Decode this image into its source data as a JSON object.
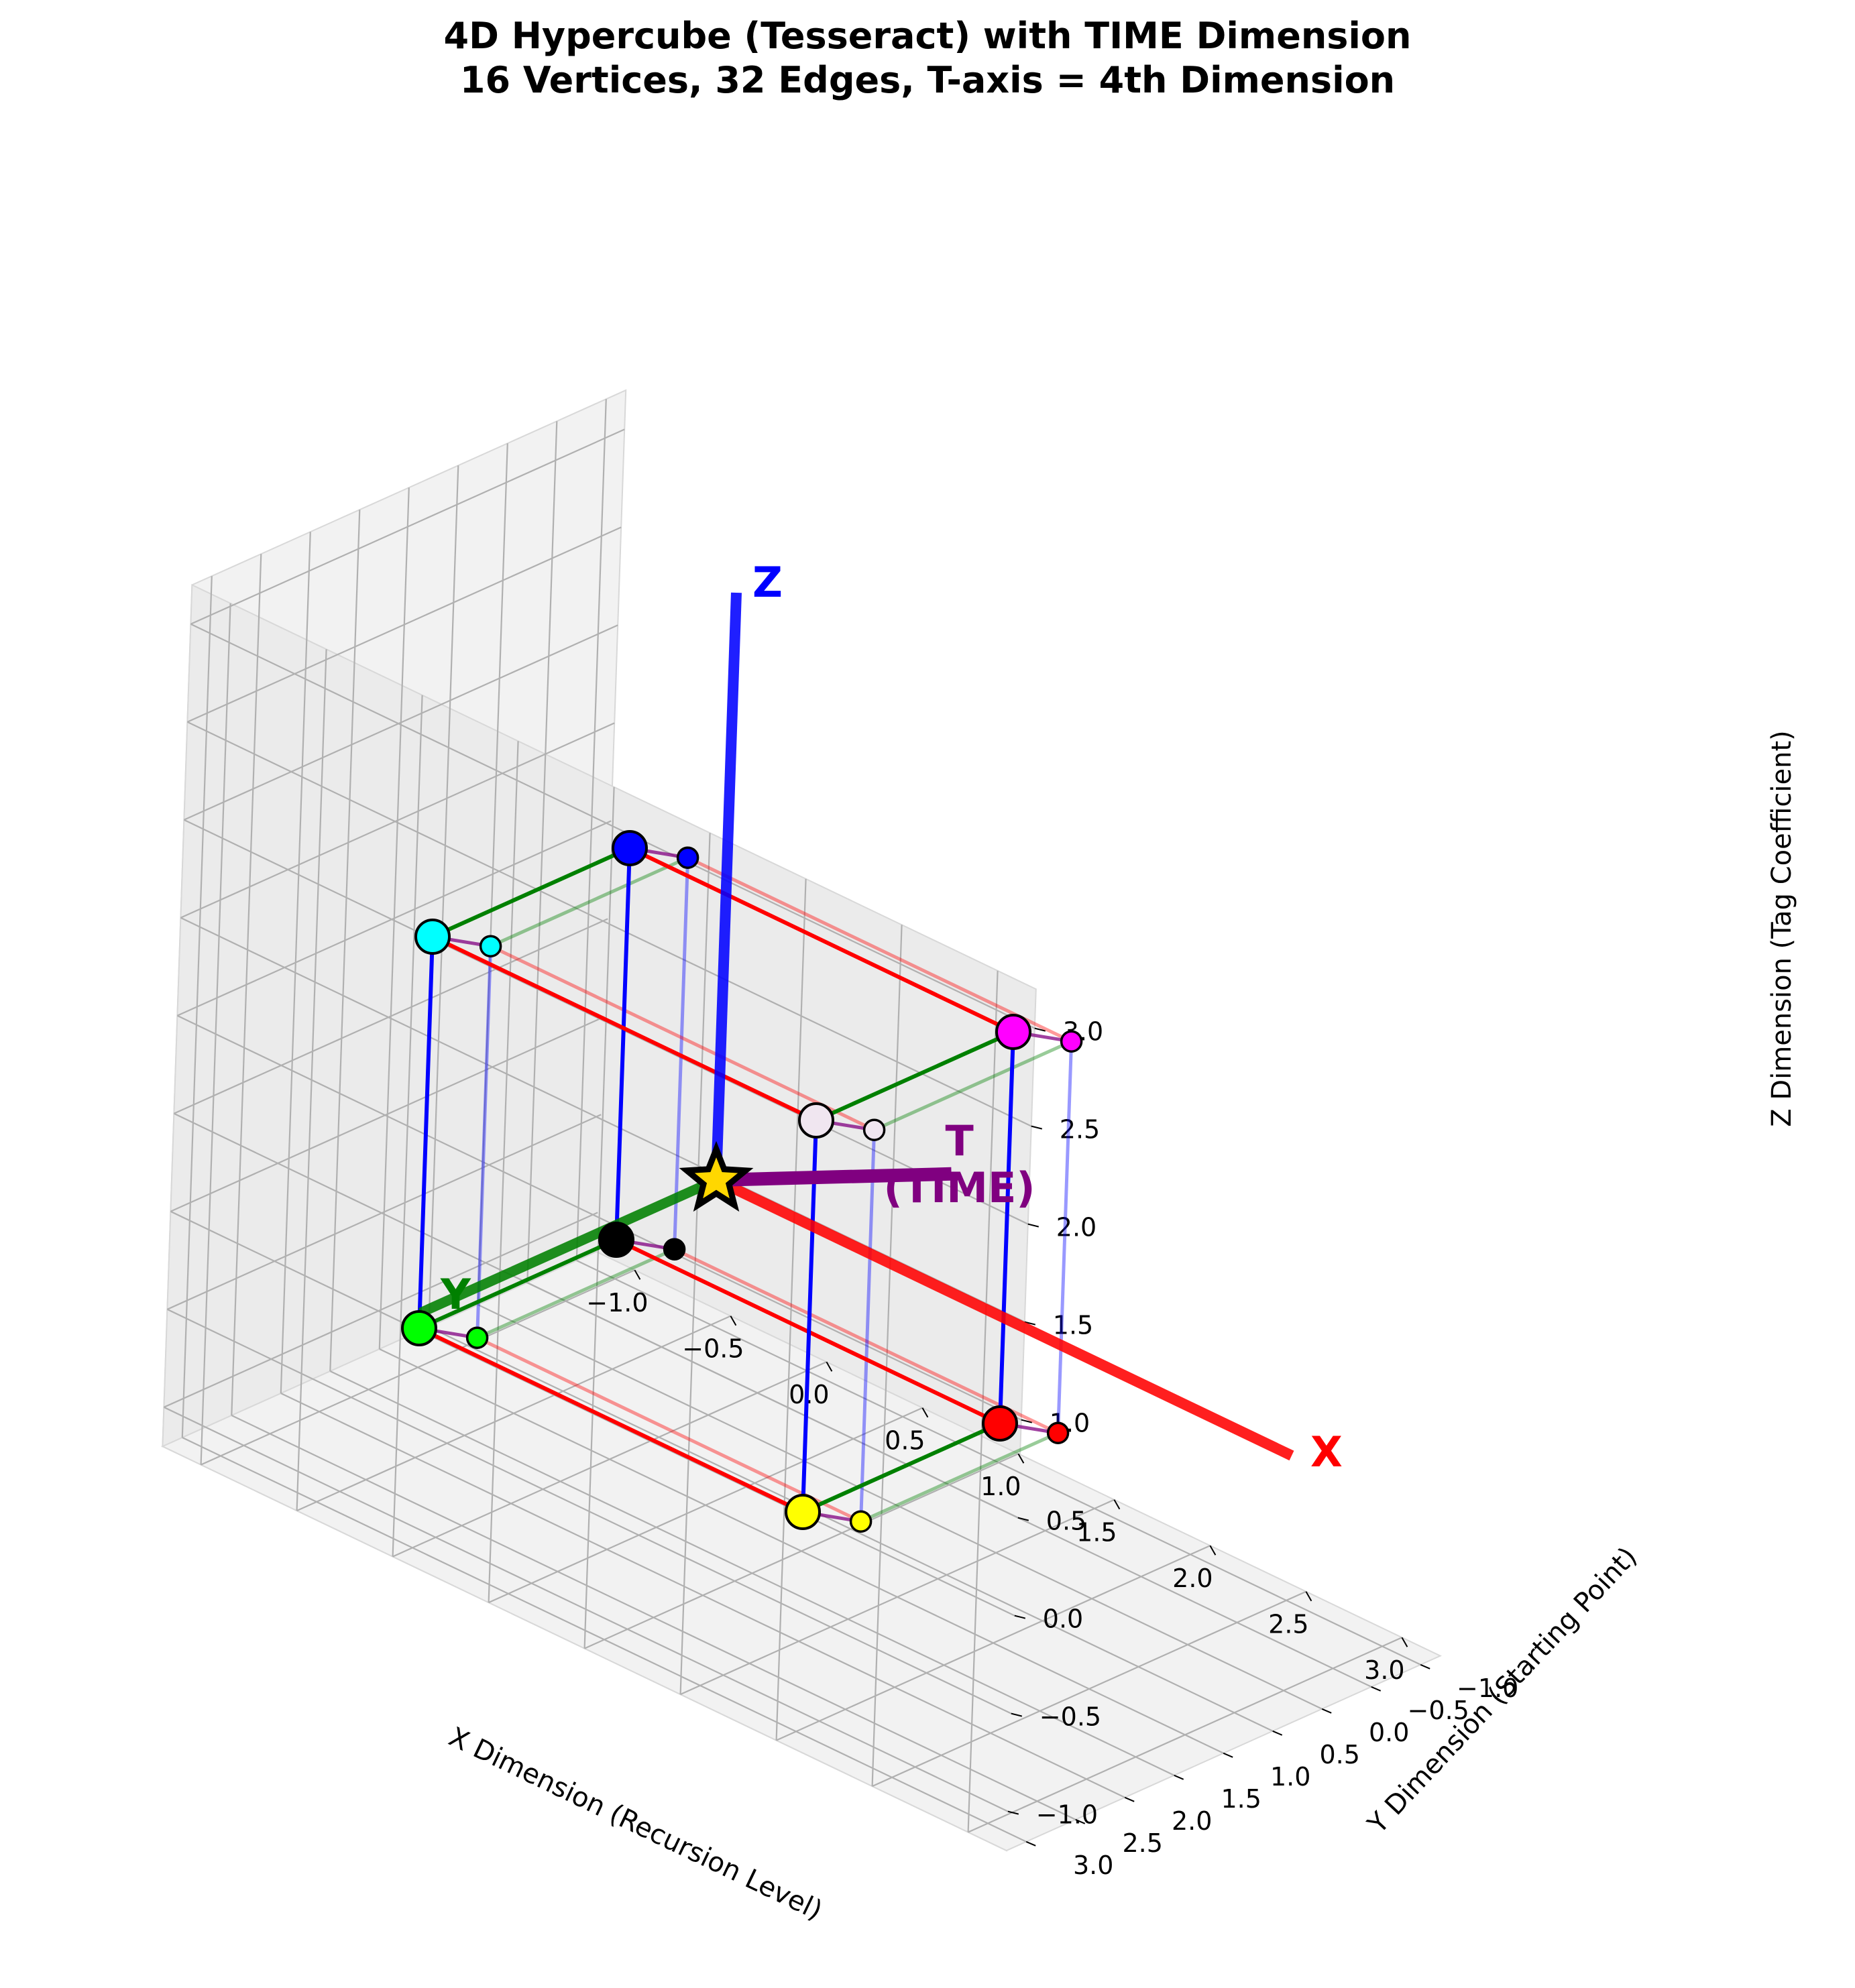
{
  "chart_data": {
    "type": "scatter",
    "projection": "3d",
    "title": "4D Hypercube (Tesseract) with TIME Dimension",
    "subtitle": "16 Vertices, 32 Edges, T-axis = 4th Dimension",
    "xlabel": "X Dimension (Recursion Level)",
    "ylabel": "Y Dimension (Starting Point)",
    "zlabel": "Z Dimension (Tag Coefficient)",
    "xlim": [
      -1.2,
      3.2
    ],
    "ylim": [
      -1.2,
      3.2
    ],
    "zlim": [
      -1.2,
      3.2
    ],
    "xticks": [
      "−1.0",
      "−0.5",
      "0.0",
      "0.5",
      "1.0",
      "1.5",
      "2.0",
      "2.5",
      "3.0"
    ],
    "yticks": [
      "−1.0",
      "−0.5",
      "0.0",
      "0.5",
      "1.0",
      "1.5",
      "2.0",
      "2.5",
      "3.0"
    ],
    "zticks": [
      "−1.0",
      "−0.5",
      "0.0",
      "0.5",
      "1.0",
      "1.5",
      "2.0",
      "2.5",
      "3.0"
    ],
    "grid": true,
    "axis_arrows": [
      {
        "label": "X",
        "color": "#ff0000",
        "end": [
          3,
          0,
          0
        ]
      },
      {
        "label": "Y",
        "color": "#008000",
        "end": [
          0,
          3,
          0
        ]
      },
      {
        "label": "Z",
        "color": "#0000ff",
        "end": [
          0,
          0,
          3
        ]
      },
      {
        "label": "T\n(TIME)",
        "color": "#800080",
        "end": [
          2.4,
          2.4,
          1.7
        ]
      }
    ],
    "origin_marker": {
      "x": 0,
      "y": 0,
      "z": 0,
      "color": "#ffd700",
      "shape": "star"
    },
    "inner_cube": {
      "range": [
        -1,
        1
      ],
      "vertices": [
        {
          "x": -1,
          "y": -1,
          "z": -1,
          "color": "#000000"
        },
        {
          "x": 1,
          "y": -1,
          "z": -1,
          "color": "#ff0000"
        },
        {
          "x": -1,
          "y": 1,
          "z": -1,
          "color": "#00ff00"
        },
        {
          "x": 1,
          "y": 1,
          "z": -1,
          "color": "#ffff00"
        },
        {
          "x": -1,
          "y": -1,
          "z": 1,
          "color": "#0000ff"
        },
        {
          "x": 1,
          "y": -1,
          "z": 1,
          "color": "#ff00ff"
        },
        {
          "x": -1,
          "y": 1,
          "z": 1,
          "color": "#00ffff"
        },
        {
          "x": 1,
          "y": 1,
          "z": 1,
          "color": "#f0e6f0"
        }
      ]
    },
    "outer_cube": {
      "vertices": [
        {
          "x": -0.8,
          "y": -1.2,
          "z": -1.0,
          "color": "#000000"
        },
        {
          "x": 1.2,
          "y": -1.2,
          "z": -1.0,
          "color": "#ff0000"
        },
        {
          "x": -0.8,
          "y": 0.8,
          "z": -1.0,
          "color": "#00ff00"
        },
        {
          "x": 1.2,
          "y": 0.8,
          "z": -1.0,
          "color": "#ffff00"
        },
        {
          "x": -0.8,
          "y": -1.2,
          "z": 1.0,
          "color": "#0000ff"
        },
        {
          "x": 1.2,
          "y": -1.2,
          "z": 1.0,
          "color": "#ff00ff"
        },
        {
          "x": -0.8,
          "y": 0.8,
          "z": 1.0,
          "color": "#00ffff"
        },
        {
          "x": 1.2,
          "y": 0.8,
          "z": 1.0,
          "color": "#f0e6f0"
        }
      ]
    },
    "edge_colors": {
      "x": "#ff0000",
      "y": "#008000",
      "z": "#0000ff",
      "t": "#800080"
    },
    "pane_color": "#f2f2f2",
    "grid_color": "#b0b0b0"
  }
}
